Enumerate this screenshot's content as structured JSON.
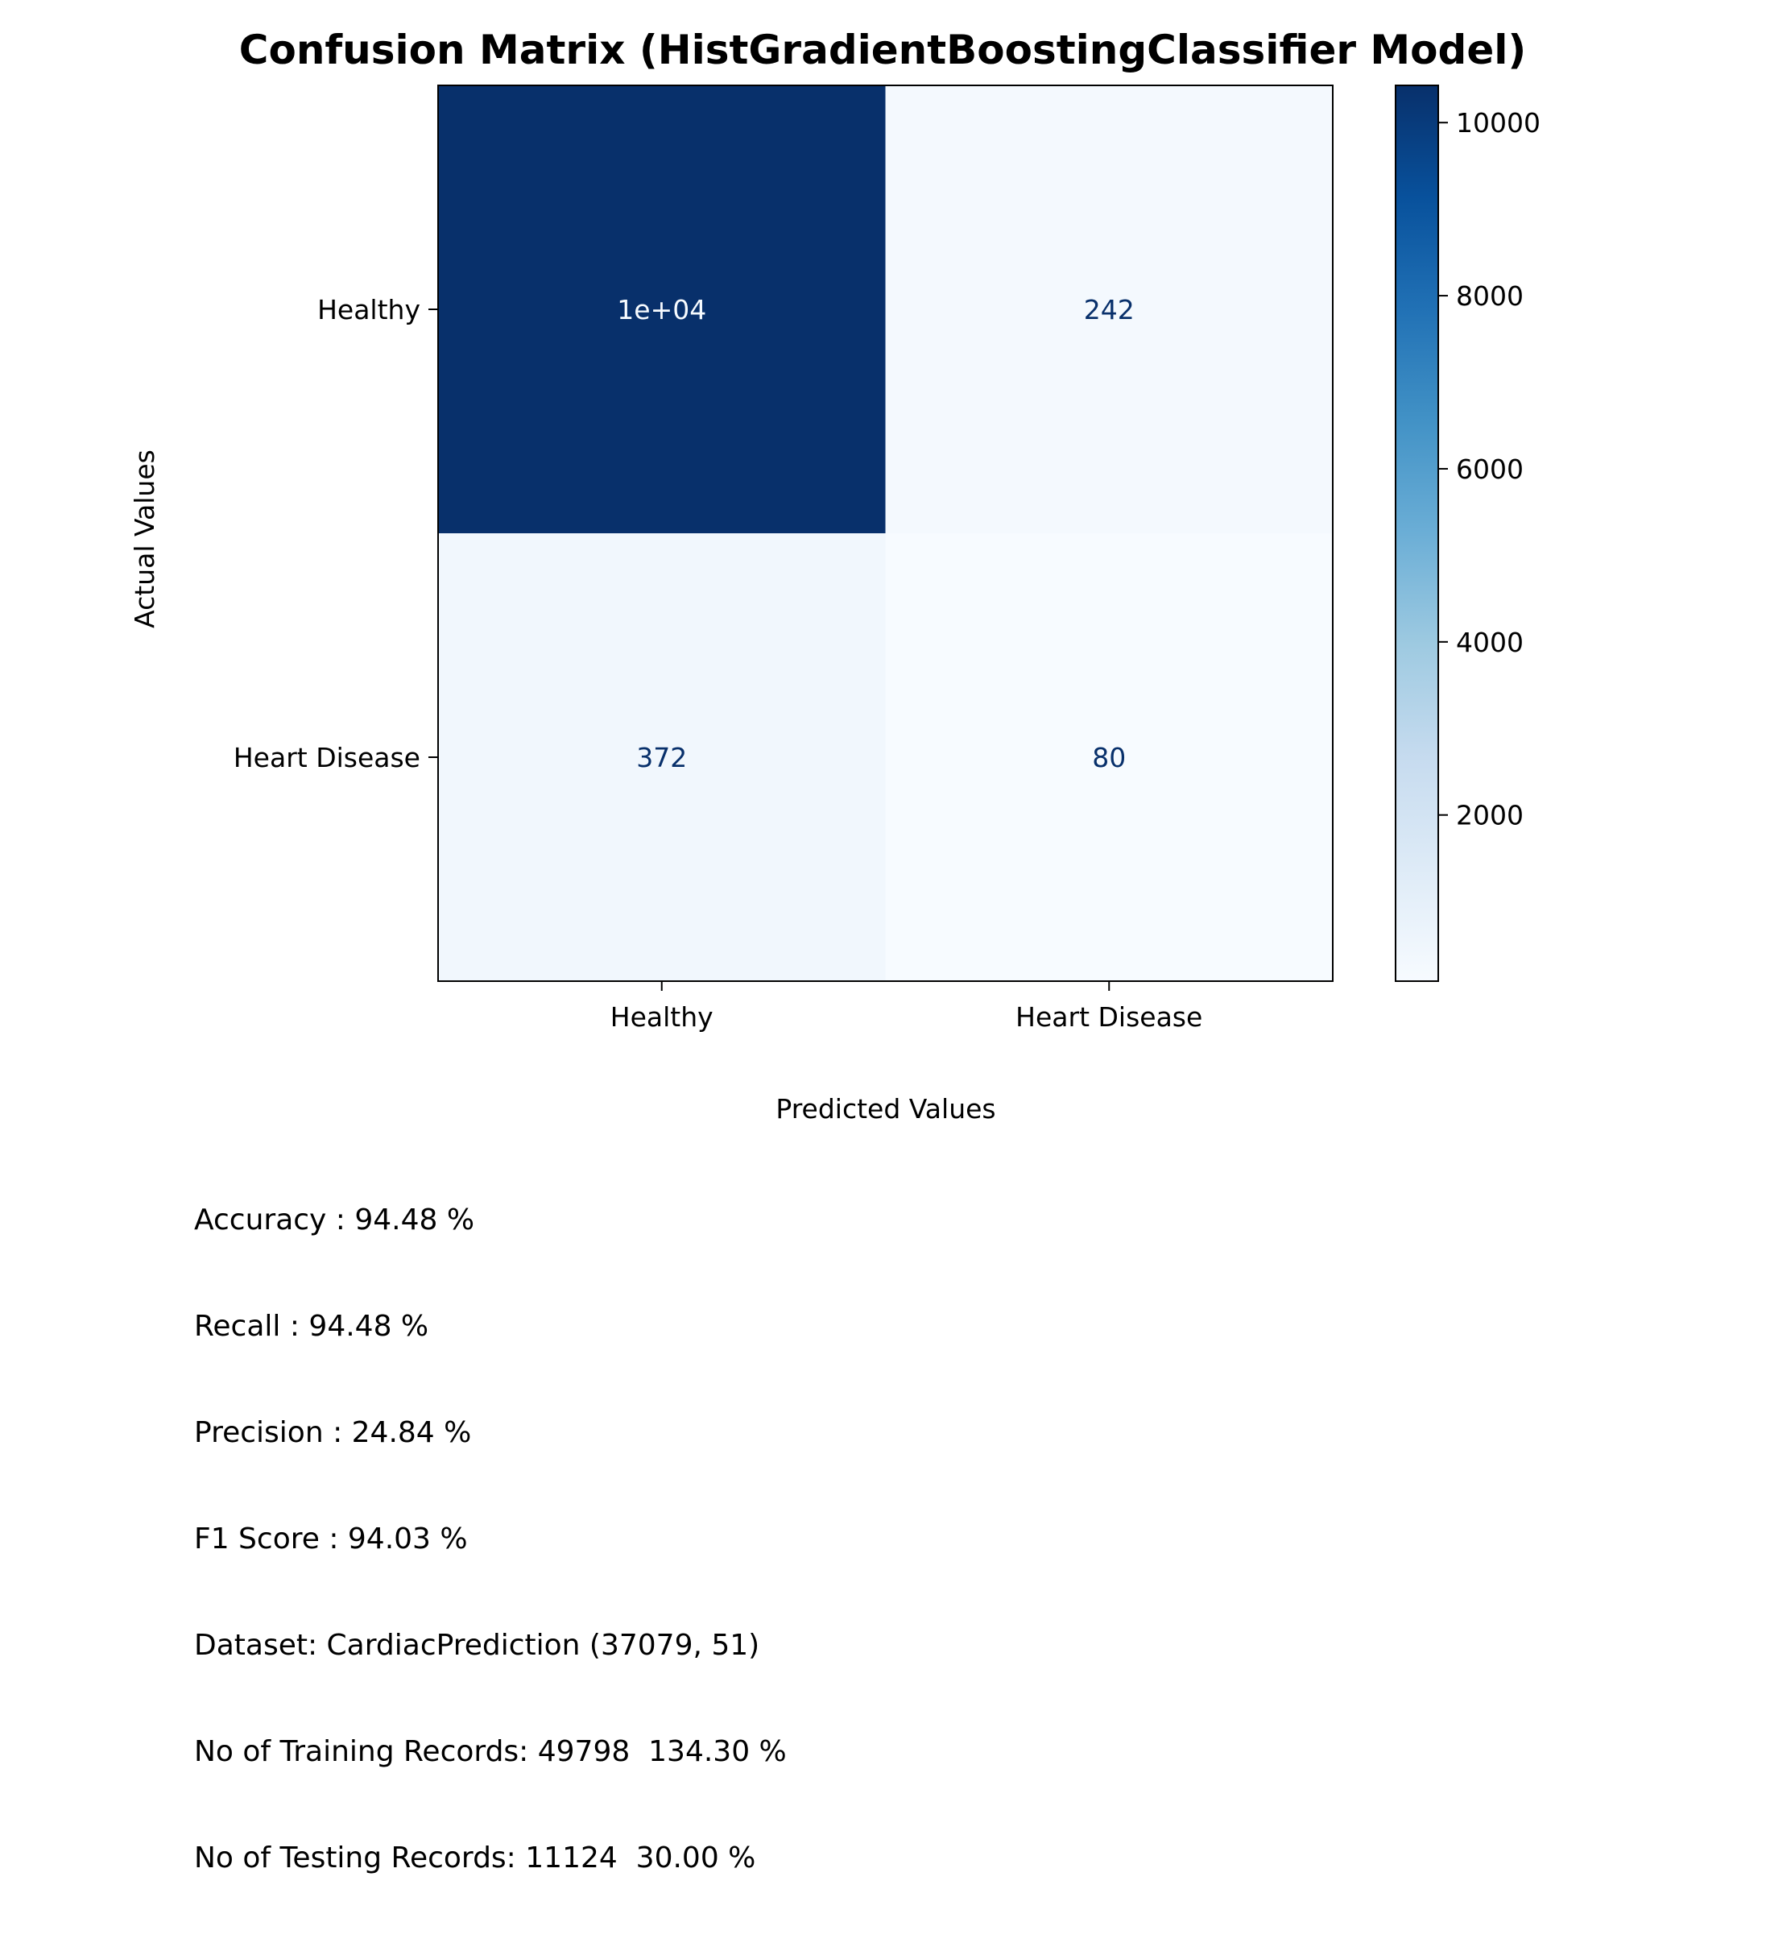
{
  "chart_data": {
    "type": "heatmap",
    "title": "Confusion Matrix (HistGradientBoostingClassifier Model)",
    "xlabel": "Predicted Values",
    "ylabel": "Actual Values",
    "x_categories": [
      "Healthy",
      "Heart Disease"
    ],
    "y_categories": [
      "Healthy",
      "Heart Disease"
    ],
    "values": [
      [
        10430,
        242
      ],
      [
        372,
        80
      ]
    ],
    "cell_labels": [
      [
        "1e+04",
        "242"
      ],
      [
        "372",
        "80"
      ]
    ],
    "colormap": "Blues",
    "colorbar": {
      "range": [
        80,
        10430
      ],
      "ticks": [
        2000,
        4000,
        6000,
        8000,
        10000
      ],
      "tick_labels": [
        "2000",
        "4000",
        "6000",
        "8000",
        "10000"
      ]
    }
  },
  "metrics": [
    "Accuracy : 94.48 %",
    "Recall : 94.48 %",
    "Precision : 24.84 %",
    "F1 Score : 94.03 %",
    "Dataset: CardiacPrediction (37079, 51)",
    "No of Training Records: 49798  134.30 %",
    "No of Testing Records: 11124  30.00 %"
  ]
}
